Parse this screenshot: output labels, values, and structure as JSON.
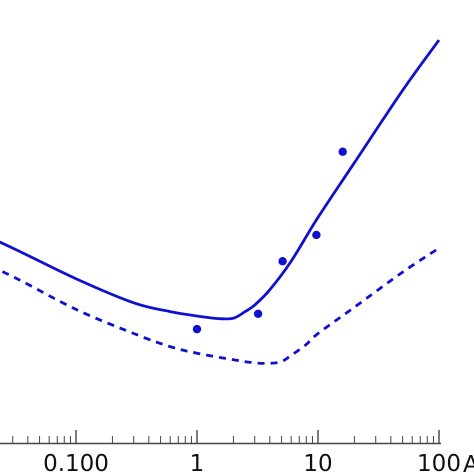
{
  "chart_data": {
    "type": "scatter",
    "x_scale": "log",
    "xlim": [
      0.01,
      100
    ],
    "ylim": [
      0,
      1
    ],
    "x_ticks": [
      {
        "value": 0.1,
        "label": "0.100"
      },
      {
        "value": 1,
        "label": "1"
      },
      {
        "value": 10,
        "label": "10"
      },
      {
        "value": 100,
        "label": "100"
      }
    ],
    "partial_label": "A",
    "series": [
      {
        "style": "solid",
        "color": "#1010d0",
        "x": [
          0.01,
          0.03,
          0.1,
          0.3,
          0.6,
          1,
          1.5,
          2,
          2.5,
          3,
          4,
          6,
          10,
          20,
          50,
          100
        ],
        "y": [
          0.505,
          0.445,
          0.375,
          0.32,
          0.3,
          0.29,
          0.284,
          0.285,
          0.3,
          0.315,
          0.35,
          0.415,
          0.515,
          0.64,
          0.805,
          0.92
        ]
      },
      {
        "style": "dashed",
        "color": "#1010d0",
        "x": [
          0.01,
          0.03,
          0.1,
          0.3,
          0.6,
          1,
          2,
          3,
          4,
          5,
          6,
          8,
          10,
          20,
          50,
          100
        ],
        "y": [
          0.44,
          0.38,
          0.305,
          0.25,
          0.22,
          0.205,
          0.19,
          0.183,
          0.182,
          0.186,
          0.2,
          0.225,
          0.25,
          0.31,
          0.39,
          0.445
        ]
      },
      {
        "style": "points",
        "color": "#1010d0",
        "x": [
          1,
          3.2,
          5.1,
          9.7,
          16
        ],
        "y": [
          0.26,
          0.295,
          0.415,
          0.475,
          0.665
        ]
      }
    ]
  }
}
